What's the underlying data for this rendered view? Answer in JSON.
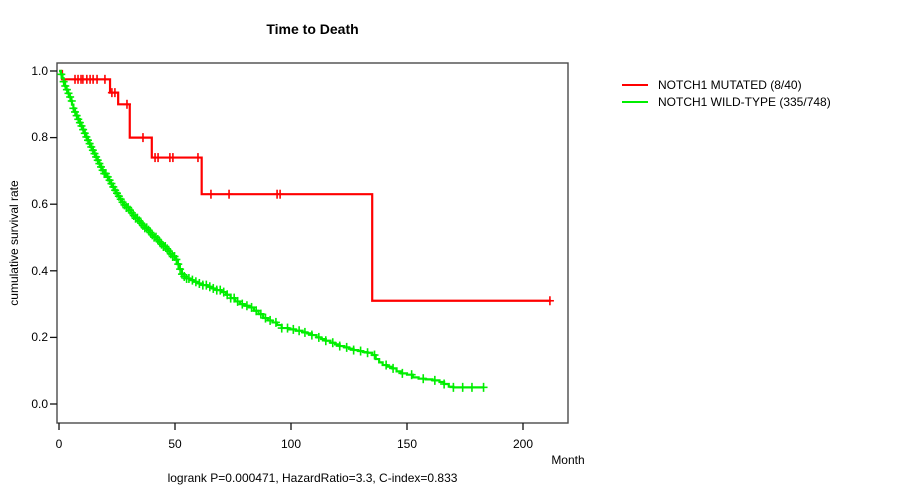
{
  "chart_data": {
    "type": "line",
    "subtype": "kaplan-meier-step-curve",
    "title": "Time to Death",
    "xlabel": "Month",
    "ylabel": "cumulative survival rate",
    "annotation": "logrank P=0.000471, HazardRatio=3.3, C-index=0.833",
    "xlim": [
      0,
      220
    ],
    "ylim": [
      0,
      1
    ],
    "x_ticks": [
      "0",
      "50",
      "100",
      "150",
      "200"
    ],
    "x_tick_values": [
      0,
      50,
      100,
      150,
      200
    ],
    "y_ticks": [
      "1.0",
      "0.8",
      "0.6",
      "0.4",
      "0.2",
      "0.0"
    ],
    "y_tick_values": [
      1.0,
      0.8,
      0.6,
      0.4,
      0.2,
      0.0
    ],
    "grid": false,
    "legend_position": "right-outside",
    "series": [
      {
        "name": "NOTCH1 MUTATED (8/40)",
        "events_over_n": "8/40",
        "color": "#ff0000",
        "points": [
          [
            0,
            1.0
          ],
          [
            1.3,
            0.975
          ],
          [
            22,
            0.935
          ],
          [
            25.5,
            0.9
          ],
          [
            30.5,
            0.8
          ],
          [
            40,
            0.74
          ],
          [
            61.5,
            0.63
          ],
          [
            135,
            0.31
          ],
          [
            212,
            0.31
          ]
        ],
        "censor_marks": [
          6.9,
          8.2,
          9.5,
          10.3,
          12,
          13.4,
          14.7,
          16.4,
          19.8,
          22.8,
          24.1,
          29.3,
          36.2,
          41.4,
          42.7,
          47.8,
          49.1,
          59.9,
          65.5,
          73.3,
          94,
          95.3,
          211.6
        ]
      },
      {
        "name": "NOTCH1 WILD-TYPE (335/748)",
        "events_over_n": "335/748",
        "color": "#00ee00",
        "points": [
          [
            0,
            1.0
          ],
          [
            0.8,
            0.99
          ],
          [
            1.5,
            0.978
          ],
          [
            2,
            0.968
          ],
          [
            2.6,
            0.955
          ],
          [
            3.2,
            0.944
          ],
          [
            3.8,
            0.933
          ],
          [
            4.4,
            0.922
          ],
          [
            5,
            0.91
          ],
          [
            5.6,
            0.899
          ],
          [
            6.2,
            0.888
          ],
          [
            6.9,
            0.877
          ],
          [
            7.6,
            0.866
          ],
          [
            8.3,
            0.855
          ],
          [
            9,
            0.845
          ],
          [
            9.7,
            0.835
          ],
          [
            10.4,
            0.824
          ],
          [
            11.1,
            0.813
          ],
          [
            11.8,
            0.802
          ],
          [
            12.5,
            0.792
          ],
          [
            13.2,
            0.782
          ],
          [
            13.9,
            0.772
          ],
          [
            14.6,
            0.762
          ],
          [
            15.3,
            0.752
          ],
          [
            16,
            0.742
          ],
          [
            16.7,
            0.732
          ],
          [
            17.4,
            0.722
          ],
          [
            18.1,
            0.712
          ],
          [
            18.8,
            0.702
          ],
          [
            19.5,
            0.692
          ],
          [
            20.3,
            0.682
          ],
          [
            21.1,
            0.672
          ],
          [
            21.9,
            0.662
          ],
          [
            22.7,
            0.652
          ],
          [
            23.5,
            0.642
          ],
          [
            24.4,
            0.633
          ],
          [
            25.3,
            0.624
          ],
          [
            26.2,
            0.615
          ],
          [
            27.1,
            0.606
          ],
          [
            28,
            0.598
          ],
          [
            29,
            0.59
          ],
          [
            30,
            0.582
          ],
          [
            31,
            0.574
          ],
          [
            32,
            0.566
          ],
          [
            33,
            0.558
          ],
          [
            34,
            0.55
          ],
          [
            35,
            0.543
          ],
          [
            36,
            0.536
          ],
          [
            37,
            0.529
          ],
          [
            38,
            0.522
          ],
          [
            39,
            0.515
          ],
          [
            40,
            0.508
          ],
          [
            41,
            0.501
          ],
          [
            42,
            0.494
          ],
          [
            43,
            0.487
          ],
          [
            44,
            0.48
          ],
          [
            45,
            0.473
          ],
          [
            46,
            0.466
          ],
          [
            47,
            0.459
          ],
          [
            48,
            0.451
          ],
          [
            49,
            0.443
          ],
          [
            50,
            0.434
          ],
          [
            51,
            0.42
          ],
          [
            52,
            0.405
          ],
          [
            53,
            0.39
          ],
          [
            54,
            0.383
          ],
          [
            55,
            0.377
          ],
          [
            56.5,
            0.372
          ],
          [
            58,
            0.367
          ],
          [
            60,
            0.362
          ],
          [
            62,
            0.357
          ],
          [
            64,
            0.352
          ],
          [
            66,
            0.347
          ],
          [
            68,
            0.342
          ],
          [
            70,
            0.336
          ],
          [
            72,
            0.328
          ],
          [
            74,
            0.318
          ],
          [
            76,
            0.308
          ],
          [
            78,
            0.3
          ],
          [
            80,
            0.295
          ],
          [
            82,
            0.29
          ],
          [
            84,
            0.28
          ],
          [
            86,
            0.27
          ],
          [
            88,
            0.258
          ],
          [
            90,
            0.251
          ],
          [
            92,
            0.245
          ],
          [
            94,
            0.237
          ],
          [
            96,
            0.228
          ],
          [
            99,
            0.224
          ],
          [
            102,
            0.22
          ],
          [
            105,
            0.215
          ],
          [
            107,
            0.212
          ],
          [
            109,
            0.207
          ],
          [
            111,
            0.2
          ],
          [
            113,
            0.195
          ],
          [
            115,
            0.19
          ],
          [
            117,
            0.184
          ],
          [
            119,
            0.179
          ],
          [
            121,
            0.174
          ],
          [
            123,
            0.17
          ],
          [
            125,
            0.166
          ],
          [
            127,
            0.162
          ],
          [
            129,
            0.159
          ],
          [
            131,
            0.156
          ],
          [
            133,
            0.154
          ],
          [
            135,
            0.147
          ],
          [
            136.5,
            0.135
          ],
          [
            138,
            0.125
          ],
          [
            139.5,
            0.117
          ],
          [
            141.5,
            0.112
          ],
          [
            143.5,
            0.107
          ],
          [
            145.5,
            0.098
          ],
          [
            147.5,
            0.092
          ],
          [
            150,
            0.088
          ],
          [
            152.5,
            0.08
          ],
          [
            155,
            0.076
          ],
          [
            158,
            0.074
          ],
          [
            161,
            0.071
          ],
          [
            164,
            0.066
          ],
          [
            166,
            0.06
          ],
          [
            168,
            0.052
          ],
          [
            170,
            0.05
          ],
          [
            183,
            0.05
          ]
        ],
        "censor_marks": [
          1,
          2,
          2.7,
          3.4,
          4.1,
          4.8,
          5.5,
          6.2,
          6.9,
          7.6,
          8.3,
          9,
          9.7,
          10.4,
          11.1,
          11.8,
          12.5,
          13.2,
          13.9,
          14.6,
          15.3,
          16,
          16.7,
          17.4,
          18.1,
          18.8,
          19.5,
          20.2,
          21,
          21.8,
          22.6,
          23.4,
          24.2,
          25,
          25.8,
          26.6,
          27.4,
          28.2,
          29,
          29.8,
          30.6,
          31.4,
          32.2,
          33,
          33.8,
          34.6,
          35.4,
          36.2,
          37,
          37.8,
          38.6,
          39.4,
          40.2,
          41,
          41.8,
          42.6,
          43.4,
          44.2,
          45,
          45.8,
          46.6,
          47.4,
          48.2,
          49,
          49.8,
          50.6,
          51.4,
          52.2,
          53,
          54,
          55,
          56,
          57.5,
          59,
          60.5,
          62,
          63.5,
          65,
          66.5,
          68,
          69.5,
          71,
          72.5,
          74,
          75.5,
          77,
          79,
          81,
          83,
          85,
          87,
          89,
          91,
          93.5,
          96,
          98.5,
          101,
          103.5,
          106,
          109,
          112,
          115,
          118,
          121,
          124,
          127,
          130,
          133,
          136,
          141,
          144,
          148,
          152,
          157,
          162,
          166,
          170,
          174,
          178,
          183
        ]
      }
    ]
  }
}
